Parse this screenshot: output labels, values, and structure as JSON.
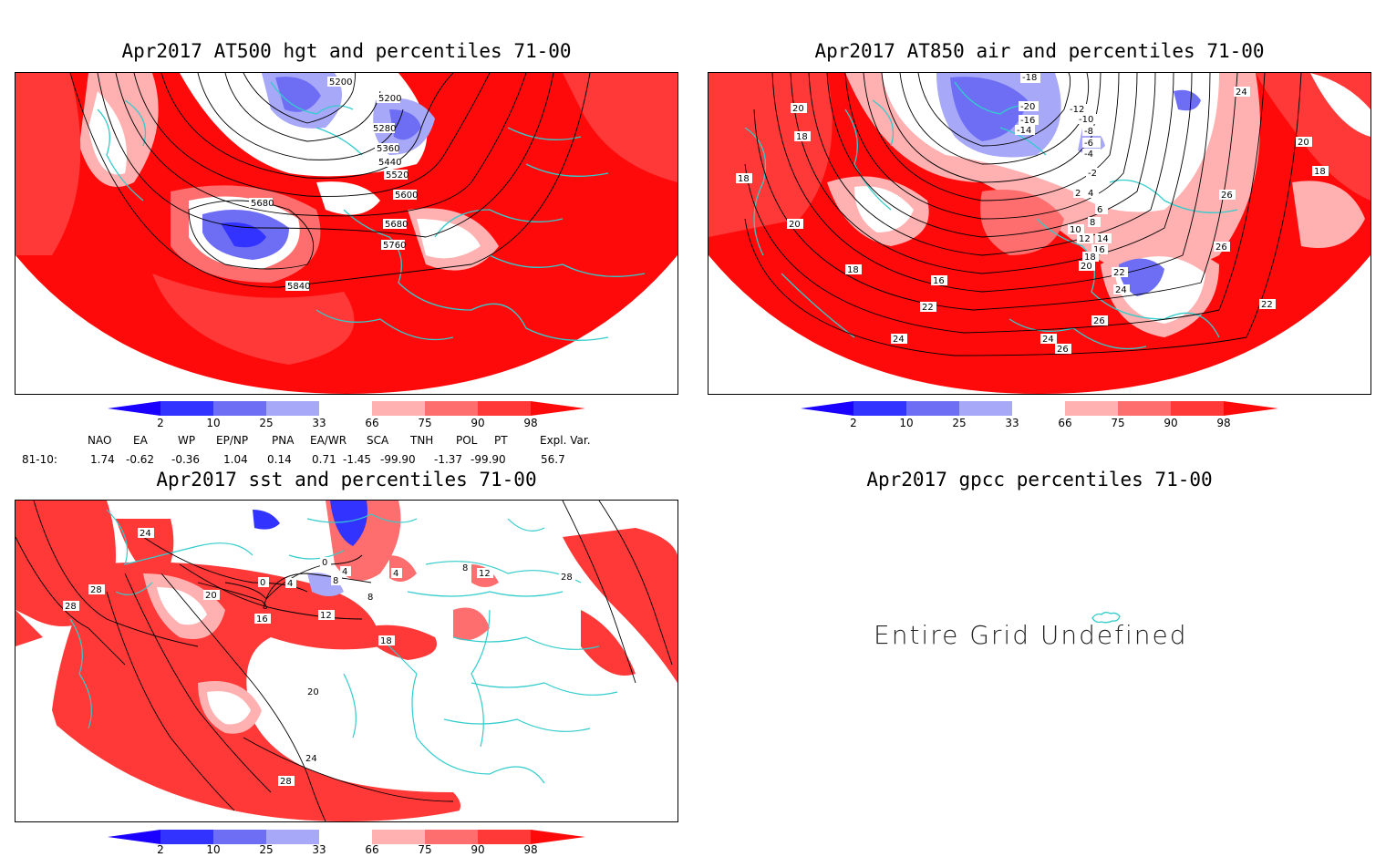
{
  "panels": [
    {
      "title": "Apr2017 AT500 hgt and percentiles 71-00",
      "contour_labels": [
        "5200",
        "5200",
        "5280",
        "5360",
        "5440",
        "5520",
        "5600",
        "5680",
        "5680",
        "5760",
        "5840"
      ]
    },
    {
      "title": "Apr2017 AT850 air and percentiles 71-00",
      "contour_labels": [
        "-18",
        "-20",
        "-16",
        "-14",
        "-12",
        "-10",
        "-8",
        "-6",
        "-4",
        "-2",
        "2",
        "4",
        "6",
        "8",
        "10",
        "12",
        "14",
        "16",
        "18",
        "20",
        "22",
        "24",
        "26",
        "26",
        "26",
        "24",
        "22",
        "20",
        "18",
        "18",
        "18",
        "20",
        "20",
        "16",
        "18",
        "22",
        "24",
        "26",
        "24"
      ]
    },
    {
      "title": "Apr2017 sst and percentiles 71-00",
      "contour_labels": [
        "24",
        "28",
        "28",
        "20",
        "16",
        "12",
        "0",
        "4",
        "8",
        "0",
        "4",
        "8",
        "18",
        "20",
        "24",
        "28",
        "28",
        "12",
        "8",
        "4"
      ]
    },
    {
      "title": "Apr2017 gpcc percentiles 71-00",
      "message": "Entire Grid Undefined"
    }
  ],
  "colorbar": {
    "labels": [
      "2",
      "10",
      "25",
      "33",
      "66",
      "75",
      "90",
      "98"
    ],
    "colors": {
      "lt2": "#1a00ff",
      "c2_10": "#3333ff",
      "c10_25": "#6e6ef5",
      "c25_33": "#a8a8f8",
      "c33_66": "#ffffff",
      "c66_75": "#ffb0b0",
      "c75_90": "#ff6e6e",
      "c90_98": "#ff3838",
      "gt98": "#ff0a0a"
    }
  },
  "indices": {
    "headers": [
      "NAO",
      "EA",
      "WP",
      "EP/NP",
      "PNA",
      "EA/WR",
      "SCA",
      "TNH",
      "POL",
      "PT",
      "Expl. Var."
    ],
    "row_label": "81-10:",
    "values": [
      "1.74",
      "-0.62",
      "-0.36",
      "1.04",
      "0.14",
      "0.71",
      "-1.45",
      "-99.90",
      "-1.37",
      "-99.90",
      "56.7"
    ]
  },
  "colors": {
    "land_outline": "#33cccc",
    "contour": "#000000"
  }
}
